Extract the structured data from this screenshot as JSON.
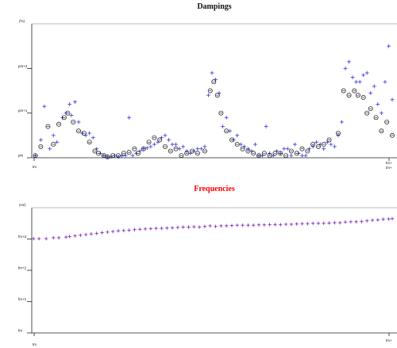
{
  "chart_data": [
    {
      "type": "scatter",
      "title": "Dampings",
      "ylabel": "(%)",
      "y_tick_labels": [
        "pm",
        "pm+1",
        "pm+2"
      ],
      "x_tick_labels": [
        "tm",
        "tm+",
        "tm+"
      ],
      "ylim": [
        0,
        3
      ],
      "xlim": [
        0,
        100
      ],
      "series": [
        {
          "marker": "cross",
          "color": "#3333dd",
          "points": [
            [
              1,
              0.05
            ],
            [
              2.5,
              0.4
            ],
            [
              3.5,
              1.15
            ],
            [
              5,
              0.2
            ],
            [
              6,
              0.5
            ],
            [
              7,
              0.35
            ],
            [
              8.5,
              0.9
            ],
            [
              9.5,
              1.0
            ],
            [
              10.5,
              1.2
            ],
            [
              11,
              0.95
            ],
            [
              12,
              1.25
            ],
            [
              13,
              0.8
            ],
            [
              14,
              0.55
            ],
            [
              15,
              0.5
            ],
            [
              16,
              0.55
            ],
            [
              17,
              0.45
            ],
            [
              18,
              0.2
            ],
            [
              19,
              0.1
            ],
            [
              20,
              0.05
            ],
            [
              21,
              0.02
            ],
            [
              22,
              0.02
            ],
            [
              23,
              0.05
            ],
            [
              24,
              0.02
            ],
            [
              25,
              0.04
            ],
            [
              26,
              0.05
            ],
            [
              27,
              0.9
            ],
            [
              28,
              0.05
            ],
            [
              29,
              0.1
            ],
            [
              30,
              0.15
            ],
            [
              31,
              0.2
            ],
            [
              32,
              0.22
            ],
            [
              33,
              0.25
            ],
            [
              34,
              0.3
            ],
            [
              35,
              0.35
            ],
            [
              36,
              0.45
            ],
            [
              37,
              0.5
            ],
            [
              38,
              0.4
            ],
            [
              39,
              0.3
            ],
            [
              40,
              0.3
            ],
            [
              41,
              0.2
            ],
            [
              42,
              0.25
            ],
            [
              43,
              0.15
            ],
            [
              44,
              0.1
            ],
            [
              45,
              0.15
            ],
            [
              46,
              0.2
            ],
            [
              47,
              0.2
            ],
            [
              48,
              0.25
            ],
            [
              49,
              1.4
            ],
            [
              50,
              1.9
            ],
            [
              51,
              1.75
            ],
            [
              52,
              1.45
            ],
            [
              53,
              0.7
            ],
            [
              54,
              0.9
            ],
            [
              55,
              0.6
            ],
            [
              56,
              0.4
            ],
            [
              57,
              0.5
            ],
            [
              58,
              0.3
            ],
            [
              59,
              0.25
            ],
            [
              60,
              0.2
            ],
            [
              61,
              0.15
            ],
            [
              62,
              0.3
            ],
            [
              63,
              0.05
            ],
            [
              64,
              0.05
            ],
            [
              65,
              0.7
            ],
            [
              66,
              0.1
            ],
            [
              67,
              0.05
            ],
            [
              68,
              0.15
            ],
            [
              69,
              0.1
            ],
            [
              70,
              0.2
            ],
            [
              71,
              0.2
            ],
            [
              72,
              0.05
            ],
            [
              73,
              0.3
            ],
            [
              74,
              0.1
            ],
            [
              75,
              0.05
            ],
            [
              76,
              0.05
            ],
            [
              77,
              0.2
            ],
            [
              78,
              0.25
            ],
            [
              79,
              0.35
            ],
            [
              80,
              0.3
            ],
            [
              81,
              0.2
            ],
            [
              82,
              0.35
            ],
            [
              83,
              0.3
            ],
            [
              84,
              0.25
            ],
            [
              85,
              0.5
            ],
            [
              86,
              0.8
            ],
            [
              87,
              2.0
            ],
            [
              88,
              2.15
            ],
            [
              89,
              1.8
            ],
            [
              90,
              1.7
            ],
            [
              91,
              1.7
            ],
            [
              92,
              1.85
            ],
            [
              93,
              1.9
            ],
            [
              94,
              1.45
            ],
            [
              95,
              1.6
            ],
            [
              96,
              1.2
            ],
            [
              97,
              1.0
            ],
            [
              98,
              1.7
            ],
            [
              99,
              2.5
            ],
            [
              100,
              1.3
            ]
          ]
        },
        {
          "marker": "circle",
          "color": "#111111",
          "points": [
            [
              1,
              0.05
            ],
            [
              2.5,
              0.25
            ],
            [
              4.5,
              0.7
            ],
            [
              6,
              0.3
            ],
            [
              7.5,
              0.75
            ],
            [
              9,
              0.9
            ],
            [
              10,
              1.0
            ],
            [
              11.5,
              0.8
            ],
            [
              13,
              0.6
            ],
            [
              14.5,
              0.55
            ],
            [
              16,
              0.35
            ],
            [
              17.5,
              0.15
            ],
            [
              18.5,
              0.1
            ],
            [
              20,
              0.05
            ],
            [
              21,
              0.02
            ],
            [
              22.5,
              0.05
            ],
            [
              24,
              0.05
            ],
            [
              25.5,
              0.1
            ],
            [
              27,
              0.12
            ],
            [
              28.5,
              0.2
            ],
            [
              29.5,
              0.1
            ],
            [
              31,
              0.2
            ],
            [
              32.5,
              0.35
            ],
            [
              34,
              0.45
            ],
            [
              35.5,
              0.4
            ],
            [
              37,
              0.25
            ],
            [
              38.5,
              0.15
            ],
            [
              40,
              0.2
            ],
            [
              41.5,
              0.05
            ],
            [
              43,
              0.1
            ],
            [
              44.5,
              0.15
            ],
            [
              46,
              0.1
            ],
            [
              48,
              0.15
            ],
            [
              49.5,
              1.5
            ],
            [
              50.5,
              1.7
            ],
            [
              51.5,
              1.4
            ],
            [
              52.5,
              1.0
            ],
            [
              54,
              0.6
            ],
            [
              55.5,
              0.4
            ],
            [
              57,
              0.3
            ],
            [
              58.5,
              0.2
            ],
            [
              60,
              0.15
            ],
            [
              61.5,
              0.1
            ],
            [
              63,
              0.05
            ],
            [
              64.5,
              0.1
            ],
            [
              66,
              0.05
            ],
            [
              67.5,
              0.1
            ],
            [
              69,
              0.1
            ],
            [
              70.5,
              0.05
            ],
            [
              72,
              0.15
            ],
            [
              73.5,
              0.1
            ],
            [
              75,
              0.2
            ],
            [
              76.5,
              0.15
            ],
            [
              78,
              0.3
            ],
            [
              79.5,
              0.25
            ],
            [
              81,
              0.3
            ],
            [
              82.5,
              0.4
            ],
            [
              85,
              0.55
            ],
            [
              86.5,
              1.5
            ],
            [
              88,
              1.4
            ],
            [
              89.5,
              1.5
            ],
            [
              90.5,
              1.4
            ],
            [
              92,
              1.35
            ],
            [
              93,
              1.0
            ],
            [
              94,
              1.1
            ],
            [
              95.5,
              0.9
            ],
            [
              97,
              0.6
            ],
            [
              98.5,
              0.8
            ],
            [
              100,
              0.5
            ]
          ]
        }
      ]
    },
    {
      "type": "scatter",
      "title": "Frequencies",
      "ylabel": "(Hz)",
      "y_tick_labels": [
        "fm",
        "fm+1",
        "fm+2",
        "fm+3"
      ],
      "x_tick_labels": [
        "tm",
        "tm+"
      ],
      "ylim": [
        0,
        4
      ],
      "xlim": [
        0,
        100
      ],
      "series": [
        {
          "marker": "cross",
          "color": "#7a1fb8",
          "points": [
            [
              0.5,
              3.01
            ],
            [
              2,
              3.01
            ],
            [
              4,
              3.01
            ],
            [
              6,
              3.04
            ],
            [
              7.5,
              3.04
            ],
            [
              9.5,
              3.06
            ],
            [
              10.5,
              3.08
            ],
            [
              12,
              3.1
            ],
            [
              13.5,
              3.12
            ],
            [
              15,
              3.14
            ],
            [
              16.5,
              3.16
            ],
            [
              18,
              3.18
            ],
            [
              19.5,
              3.2
            ],
            [
              21,
              3.22
            ],
            [
              22.5,
              3.24
            ],
            [
              24,
              3.26
            ],
            [
              25.5,
              3.27
            ],
            [
              27,
              3.28
            ],
            [
              28.5,
              3.3
            ],
            [
              30,
              3.31
            ],
            [
              31.5,
              3.32
            ],
            [
              33,
              3.33
            ],
            [
              34.5,
              3.34
            ],
            [
              36,
              3.34
            ],
            [
              37.5,
              3.35
            ],
            [
              39,
              3.36
            ],
            [
              40.5,
              3.37
            ],
            [
              42,
              3.38
            ],
            [
              43.5,
              3.38
            ],
            [
              45,
              3.39
            ],
            [
              46.5,
              3.38
            ],
            [
              48,
              3.4
            ],
            [
              49.5,
              3.42
            ],
            [
              51,
              3.4
            ],
            [
              52.5,
              3.42
            ],
            [
              54,
              3.42
            ],
            [
              55.5,
              3.43
            ],
            [
              57,
              3.44
            ],
            [
              58.5,
              3.44
            ],
            [
              60,
              3.44
            ],
            [
              61.5,
              3.44
            ],
            [
              63,
              3.45
            ],
            [
              64.5,
              3.45
            ],
            [
              66,
              3.46
            ],
            [
              67.5,
              3.46
            ],
            [
              69,
              3.46
            ],
            [
              70.5,
              3.47
            ],
            [
              72,
              3.47
            ],
            [
              73.5,
              3.48
            ],
            [
              75,
              3.49
            ],
            [
              76.5,
              3.49
            ],
            [
              78,
              3.5
            ],
            [
              79.5,
              3.5
            ],
            [
              81,
              3.5
            ],
            [
              82.5,
              3.51
            ],
            [
              84,
              3.52
            ],
            [
              85.5,
              3.52
            ],
            [
              87,
              3.54
            ],
            [
              88.5,
              3.55
            ],
            [
              90,
              3.55
            ],
            [
              91.5,
              3.56
            ],
            [
              93,
              3.58
            ],
            [
              94.5,
              3.6
            ],
            [
              96,
              3.61
            ],
            [
              97.5,
              3.63
            ],
            [
              99,
              3.64
            ],
            [
              100,
              3.65
            ]
          ]
        }
      ]
    }
  ]
}
